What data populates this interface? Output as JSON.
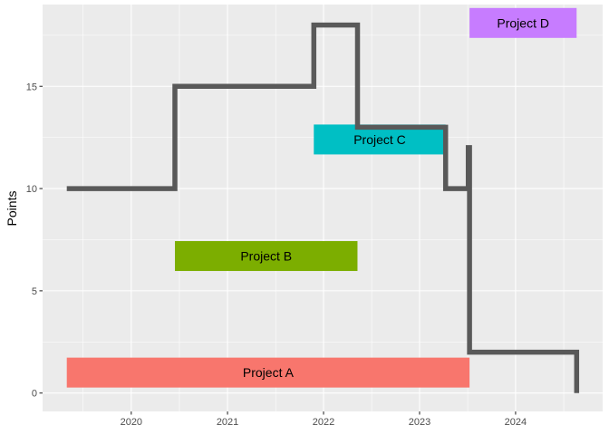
{
  "chart_data": {
    "type": "step-line-with-range-bars",
    "title": "",
    "xlabel": "",
    "ylabel": "Points",
    "xlim": [
      "2019-01-29",
      "2024-11-27"
    ],
    "ylim": [
      -0.9,
      19.0
    ],
    "x_ticks": [
      "2020-01-01",
      "2021-01-01",
      "2022-01-01",
      "2023-01-01",
      "2024-01-01"
    ],
    "x_tick_labels": [
      "2020",
      "2021",
      "2022",
      "2023",
      "2024"
    ],
    "y_ticks": [
      0,
      5,
      10,
      15
    ],
    "y_tick_labels": [
      "0",
      "5",
      "10",
      "15"
    ],
    "grid": true,
    "background": "#ebebeb",
    "grid_color": "#ffffff",
    "step_line": {
      "color": "#595959",
      "x": [
        "2019-05-01",
        "2020-06-15",
        "2020-06-15",
        "2021-11-25",
        "2021-11-25",
        "2022-05-10",
        "2022-05-10",
        "2023-04-10",
        "2023-04-10",
        "2023-07-05",
        "2023-07-05",
        "2023-07-10",
        "2023-07-10",
        "2024-08-20",
        "2024-08-20"
      ],
      "y": [
        10,
        10,
        15,
        15,
        18,
        18,
        13,
        13,
        10,
        10,
        12,
        12,
        2,
        2,
        0
      ]
    },
    "bars": [
      {
        "label": "Project A",
        "start": "2019-05-01",
        "end": "2023-07-10",
        "y": 1,
        "color": "#f8766d"
      },
      {
        "label": "Project B",
        "start": "2020-06-15",
        "end": "2022-05-10",
        "y": 6.7,
        "color": "#7cae00"
      },
      {
        "label": "Project C",
        "start": "2021-11-25",
        "end": "2023-04-10",
        "y": 12.4,
        "color": "#00bfc4"
      },
      {
        "label": "Project D",
        "start": "2023-07-10",
        "end": "2024-08-20",
        "y": 18.1,
        "color": "#c77cff"
      }
    ]
  }
}
